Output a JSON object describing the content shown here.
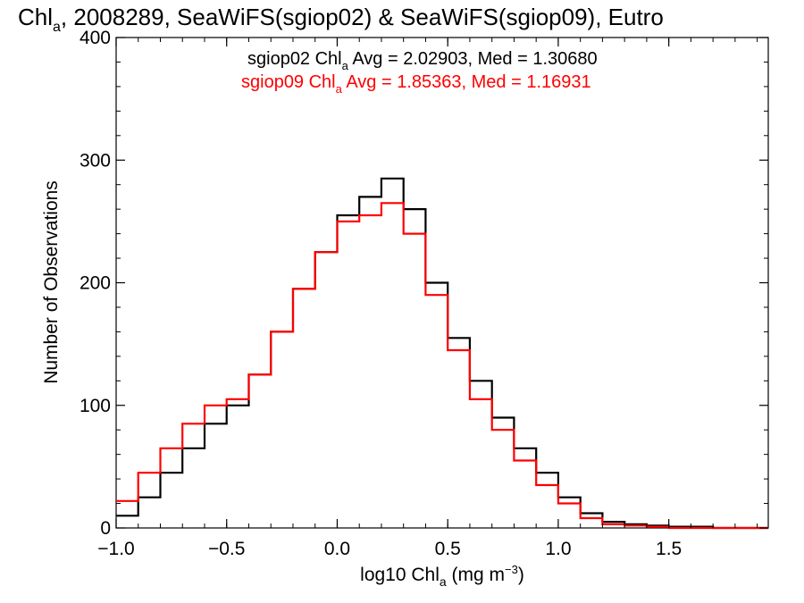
{
  "chart_data": {
    "type": "line",
    "style": "step-histogram",
    "title": {
      "main": "Chl",
      "sub": "a",
      "rest": ", 2008289, SeaWiFS(sgiop02) & SeaWiFS(sgiop09), Eutro"
    },
    "xlabel": {
      "main": "log10 Chl",
      "sub": "a",
      "units_pre": " (mg m",
      "units_sup": "−3",
      "units_post": ")"
    },
    "ylabel": "Number of Observations",
    "xlim": [
      -1.0,
      1.95
    ],
    "ylim": [
      0,
      400
    ],
    "xticks": [
      {
        "value": -1.0,
        "label": "−1.0"
      },
      {
        "value": -0.5,
        "label": "−0.5"
      },
      {
        "value": 0.0,
        "label": "0.0"
      },
      {
        "value": 0.5,
        "label": "0.5"
      },
      {
        "value": 1.0,
        "label": "1.0"
      },
      {
        "value": 1.5,
        "label": "1.5"
      }
    ],
    "yticks": [
      {
        "value": 0,
        "label": "0"
      },
      {
        "value": 100,
        "label": "100"
      },
      {
        "value": 200,
        "label": "200"
      },
      {
        "value": 300,
        "label": "300"
      },
      {
        "value": 400,
        "label": "400"
      }
    ],
    "grid": false,
    "annotations": [
      {
        "pre": "sgiop02 Chl",
        "sub": "a",
        "post": " Avg = 2.02903, Med = 1.30680",
        "color": "#000000"
      },
      {
        "pre": "sgiop09 Chl",
        "sub": "a",
        "post": " Avg = 1.85363, Med = 1.16931",
        "color": "#ff0000"
      }
    ],
    "series": [
      {
        "color": "#000000",
        "x": [
          -1.0,
          -0.9,
          -0.8,
          -0.7,
          -0.6,
          -0.5,
          -0.4,
          -0.3,
          -0.2,
          -0.1,
          0.0,
          0.1,
          0.2,
          0.3,
          0.4,
          0.5,
          0.6,
          0.7,
          0.8,
          0.9,
          1.0,
          1.1,
          1.2,
          1.3,
          1.4,
          1.5,
          1.6,
          1.7,
          1.8,
          1.95
        ],
        "y": [
          10,
          25,
          45,
          65,
          85,
          100,
          125,
          160,
          195,
          225,
          255,
          270,
          285,
          260,
          200,
          155,
          120,
          90,
          65,
          45,
          25,
          12,
          5,
          3,
          2,
          1,
          1,
          0,
          0,
          0
        ]
      },
      {
        "color": "#ff0000",
        "x": [
          -1.0,
          -0.9,
          -0.8,
          -0.7,
          -0.6,
          -0.5,
          -0.4,
          -0.3,
          -0.2,
          -0.1,
          0.0,
          0.1,
          0.2,
          0.3,
          0.4,
          0.5,
          0.6,
          0.7,
          0.8,
          0.9,
          1.0,
          1.1,
          1.2,
          1.3,
          1.4,
          1.5,
          1.6,
          1.7,
          1.8,
          1.95
        ],
        "y": [
          22,
          45,
          65,
          85,
          100,
          105,
          125,
          160,
          195,
          225,
          250,
          255,
          265,
          240,
          190,
          145,
          105,
          80,
          55,
          35,
          20,
          8,
          3,
          2,
          1,
          0,
          0,
          0,
          0,
          0
        ]
      }
    ]
  }
}
